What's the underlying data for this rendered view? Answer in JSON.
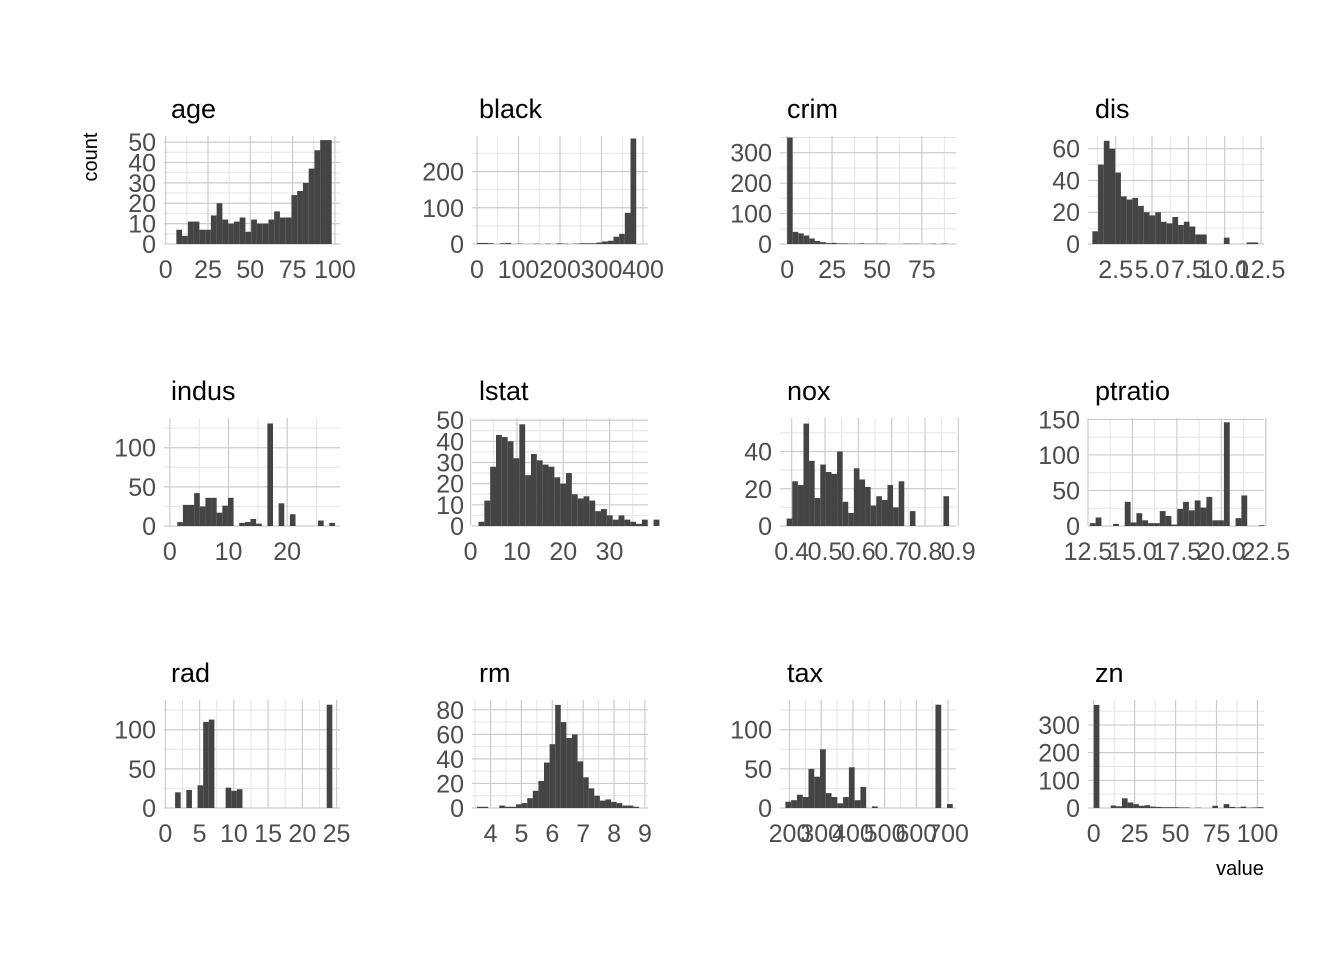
{
  "chart_data": {
    "type": "bar",
    "x_axis_title": "value",
    "y_axis_title": "count",
    "grid": true,
    "facets": [
      {
        "name": "age",
        "xlim": [
          -1,
          103
        ],
        "ylim": [
          0,
          53
        ],
        "xticks": [
          0,
          25,
          50,
          75,
          100
        ],
        "yticks": [
          0,
          10,
          20,
          30,
          40,
          50
        ],
        "bin_start": 2.9,
        "bin_width": 3.4,
        "values": [
          0,
          7,
          4,
          11,
          11,
          7,
          7,
          14,
          20,
          12,
          10,
          11,
          13,
          6,
          12,
          10,
          10,
          12,
          16,
          13,
          13,
          24,
          26,
          30,
          37,
          46,
          51,
          51
        ]
      },
      {
        "name": "black",
        "xlim": [
          -12,
          412
        ],
        "ylim": [
          0,
          298
        ],
        "xticks": [
          0,
          100,
          200,
          300,
          400
        ],
        "yticks": [
          0,
          100,
          200
        ],
        "bin_start": 0,
        "bin_width": 13.7,
        "values": [
          3,
          3,
          2,
          0,
          2,
          3,
          0,
          1,
          0,
          0,
          1,
          0,
          1,
          0,
          2,
          1,
          0,
          1,
          2,
          2,
          2,
          4,
          7,
          9,
          20,
          28,
          86,
          291
        ]
      },
      {
        "name": "crim",
        "xlim": [
          -4,
          94
        ],
        "ylim": [
          0,
          355
        ],
        "xticks": [
          0,
          25,
          50,
          75
        ],
        "yticks": [
          0,
          100,
          200,
          300
        ],
        "bin_start": 0,
        "bin_width": 3.07,
        "values": [
          350,
          40,
          35,
          28,
          18,
          10,
          6,
          3,
          4,
          2,
          2,
          1,
          1,
          2,
          1,
          1,
          1,
          1,
          0,
          0,
          0,
          1,
          1,
          1,
          0,
          0,
          1,
          0,
          1
        ]
      },
      {
        "name": "dis",
        "xlim": [
          0.6,
          12.7
        ],
        "ylim": [
          0,
          68
        ],
        "xticks": [
          2.5,
          5,
          7.5,
          10,
          12.5
        ],
        "xtick_labels": [
          "2.5",
          "5.0",
          "7.5",
          "10.0",
          "12.5"
        ],
        "yticks": [
          0,
          20,
          40,
          60
        ],
        "bin_start": 0.9,
        "bin_width": 0.393,
        "values": [
          8,
          50,
          65,
          60,
          45,
          30,
          28,
          29,
          24,
          20,
          18,
          20,
          14,
          13,
          17,
          12,
          14,
          11,
          6,
          6,
          0,
          0,
          0,
          4,
          0,
          0,
          0,
          1,
          1
        ]
      },
      {
        "name": "indus",
        "xlim": [
          -1,
          29
        ],
        "ylim": [
          0,
          138
        ],
        "xticks": [
          0,
          10,
          20
        ],
        "yticks": [
          0,
          50,
          100
        ],
        "bin_start": 0.3,
        "bin_width": 0.96,
        "values": [
          0,
          5,
          27,
          27,
          42,
          25,
          36,
          36,
          17,
          26,
          36,
          0,
          4,
          5,
          9,
          3,
          0,
          131,
          0,
          29,
          0,
          15,
          0,
          0,
          0,
          0,
          7,
          0,
          4
        ]
      },
      {
        "name": "lstat",
        "xlim": [
          0.3,
          38.3
        ],
        "ylim": [
          0,
          51
        ],
        "xticks": [
          0,
          10,
          20,
          30
        ],
        "yticks": [
          0,
          10,
          20,
          30,
          40,
          50
        ],
        "bin_start": 1.7,
        "bin_width": 1.26,
        "values": [
          2,
          12,
          28,
          43,
          42,
          40,
          32,
          48,
          24,
          34,
          31,
          29,
          28,
          23,
          20,
          25,
          15,
          13,
          14,
          12,
          7,
          8,
          5,
          3,
          5,
          3,
          2,
          1,
          3,
          0,
          3
        ]
      },
      {
        "name": "nox",
        "xlim": [
          0.365,
          0.893
        ],
        "ylim": [
          0,
          58
        ],
        "xticks": [
          0.4,
          0.5,
          0.6,
          0.7,
          0.8,
          0.9
        ],
        "yticks": [
          0,
          20,
          40
        ],
        "bin_start": 0.385,
        "bin_width": 0.0168,
        "values": [
          4,
          24,
          22,
          55,
          35,
          15,
          33,
          29,
          28,
          40,
          13,
          7,
          31,
          25,
          21,
          11,
          16,
          14,
          22,
          10,
          24,
          0,
          8,
          0,
          0,
          0,
          0,
          0,
          16,
          0
        ]
      },
      {
        "name": "ptratio",
        "xlim": [
          12.5,
          22.4
        ],
        "ylim": [
          0,
          152
        ],
        "xticks": [
          12.5,
          15,
          17.5,
          20,
          22.5
        ],
        "xtick_labels": [
          "12.5",
          "15.0",
          "17.5",
          "20.0",
          "22.5"
        ],
        "yticks": [
          0,
          50,
          100,
          150
        ],
        "bin_start": 12.6,
        "bin_width": 0.328,
        "values": [
          4,
          12,
          0,
          0,
          3,
          0,
          34,
          5,
          18,
          8,
          4,
          4,
          21,
          14,
          2,
          24,
          34,
          22,
          36,
          26,
          41,
          8,
          8,
          146,
          0,
          11,
          43,
          0,
          0,
          1
        ]
      },
      {
        "name": "rad",
        "xlim": [
          -0.2,
          25.5
        ],
        "ylim": [
          0,
          138
        ],
        "xticks": [
          0,
          5,
          10,
          15,
          20,
          25
        ],
        "yticks": [
          0,
          50,
          100
        ],
        "bin_start": 0.6,
        "bin_width": 0.82,
        "values": [
          0,
          20,
          0,
          23,
          0,
          29,
          110,
          113,
          0,
          0,
          26,
          22,
          24,
          0,
          0,
          0,
          0,
          0,
          0,
          0,
          0,
          0,
          0,
          0,
          0,
          0,
          0,
          0,
          132,
          0
        ]
      },
      {
        "name": "rm",
        "xlim": [
          3.4,
          9.1
        ],
        "ylim": [
          0,
          88
        ],
        "xticks": [
          4,
          5,
          6,
          7,
          8,
          9
        ],
        "yticks": [
          0,
          20,
          40,
          60,
          80
        ],
        "bin_start": 3.56,
        "bin_width": 0.181,
        "values": [
          1,
          1,
          0,
          0,
          2,
          1,
          1,
          3,
          4,
          8,
          14,
          22,
          37,
          52,
          84,
          70,
          57,
          60,
          38,
          25,
          16,
          10,
          6,
          7,
          5,
          4,
          2,
          2,
          1,
          0
        ]
      },
      {
        "name": "tax",
        "xlim": [
          170,
          725
        ],
        "ylim": [
          0,
          138
        ],
        "xticks": [
          200,
          300,
          400,
          500,
          600,
          700
        ],
        "yticks": [
          0,
          50,
          100
        ],
        "bin_start": 187,
        "bin_width": 18.2,
        "values": [
          8,
          10,
          17,
          14,
          50,
          40,
          75,
          19,
          14,
          6,
          14,
          52,
          10,
          27,
          0,
          2,
          0,
          0,
          0,
          0,
          0,
          0,
          0,
          0,
          0,
          0,
          132,
          0,
          5
        ]
      },
      {
        "name": "zn",
        "xlim": [
          -3.5,
          104
        ],
        "ylim": [
          0,
          390
        ],
        "xticks": [
          0,
          25,
          50,
          75,
          100
        ],
        "yticks": [
          0,
          100,
          200,
          300
        ],
        "bin_start": 0,
        "bin_width": 3.45,
        "values": [
          372,
          0,
          0,
          9,
          6,
          35,
          20,
          14,
          8,
          10,
          5,
          4,
          3,
          3,
          3,
          2,
          2,
          0,
          1,
          0,
          0,
          8,
          0,
          14,
          4,
          2,
          5,
          1,
          2,
          3
        ]
      }
    ]
  }
}
